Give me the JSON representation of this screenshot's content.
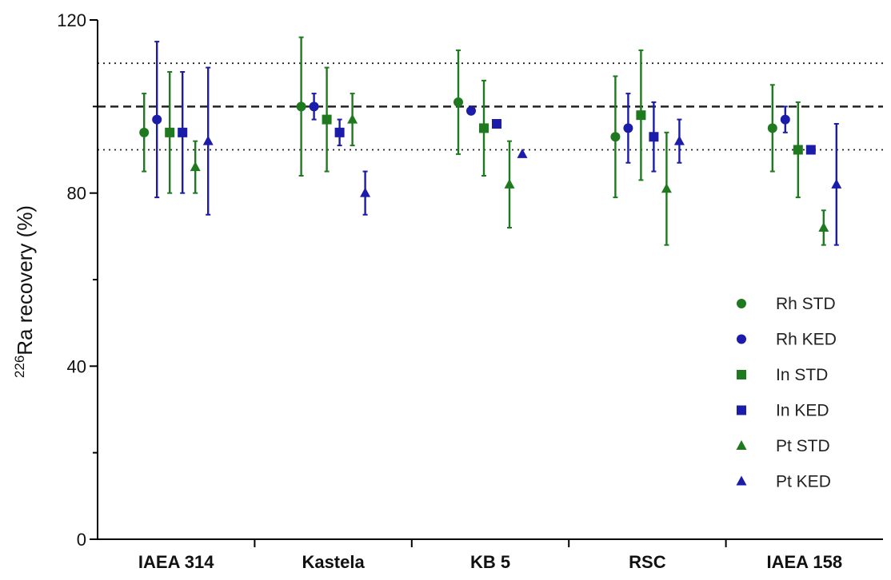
{
  "chart_data": {
    "type": "scatter",
    "ylabel_sup": "226",
    "ylabel_main": "Ra recovery (%)",
    "ylim": [
      0,
      120
    ],
    "yticks": [
      "0",
      "40",
      "80",
      "120"
    ],
    "categories": [
      "IAEA 314",
      "Kastela",
      "KB 5",
      "RSC",
      "IAEA 158"
    ],
    "reference_lines": [
      {
        "y": 100,
        "style": "dashed"
      },
      {
        "y": 110,
        "style": "dotted"
      },
      {
        "y": 90,
        "style": "dotted"
      }
    ],
    "legend_position": "right",
    "series": [
      {
        "name": "Rh STD",
        "marker": "circle",
        "color": "#1f7a1f",
        "values": [
          94,
          100,
          101,
          93,
          95
        ],
        "err_low": [
          85,
          84,
          89,
          79,
          85
        ],
        "err_high": [
          103,
          116,
          113,
          107,
          105
        ]
      },
      {
        "name": "Rh KED",
        "marker": "circle",
        "color": "#1c1caa",
        "values": [
          97,
          100,
          99,
          95,
          97
        ],
        "err_low": [
          79,
          97,
          99,
          87,
          94
        ],
        "err_high": [
          115,
          103,
          99,
          103,
          100
        ]
      },
      {
        "name": "In STD",
        "marker": "square",
        "color": "#1f7a1f",
        "values": [
          94,
          97,
          95,
          98,
          90
        ],
        "err_low": [
          80,
          85,
          84,
          83,
          79
        ],
        "err_high": [
          108,
          109,
          106,
          113,
          101
        ]
      },
      {
        "name": "In KED",
        "marker": "square",
        "color": "#1c1caa",
        "values": [
          94,
          94,
          96,
          93,
          90
        ],
        "err_low": [
          80,
          91,
          96,
          85,
          90
        ],
        "err_high": [
          108,
          97,
          96,
          101,
          90
        ]
      },
      {
        "name": "Pt STD",
        "marker": "triangle",
        "color": "#1f7a1f",
        "values": [
          86,
          97,
          82,
          81,
          72
        ],
        "err_low": [
          80,
          91,
          72,
          68,
          68
        ],
        "err_high": [
          92,
          103,
          92,
          94,
          76
        ]
      },
      {
        "name": "Pt KED",
        "marker": "triangle",
        "color": "#1c1caa",
        "values": [
          92,
          80,
          89,
          92,
          82
        ],
        "err_low": [
          75,
          75,
          89,
          87,
          68
        ],
        "err_high": [
          109,
          85,
          89,
          97,
          96
        ]
      }
    ]
  }
}
